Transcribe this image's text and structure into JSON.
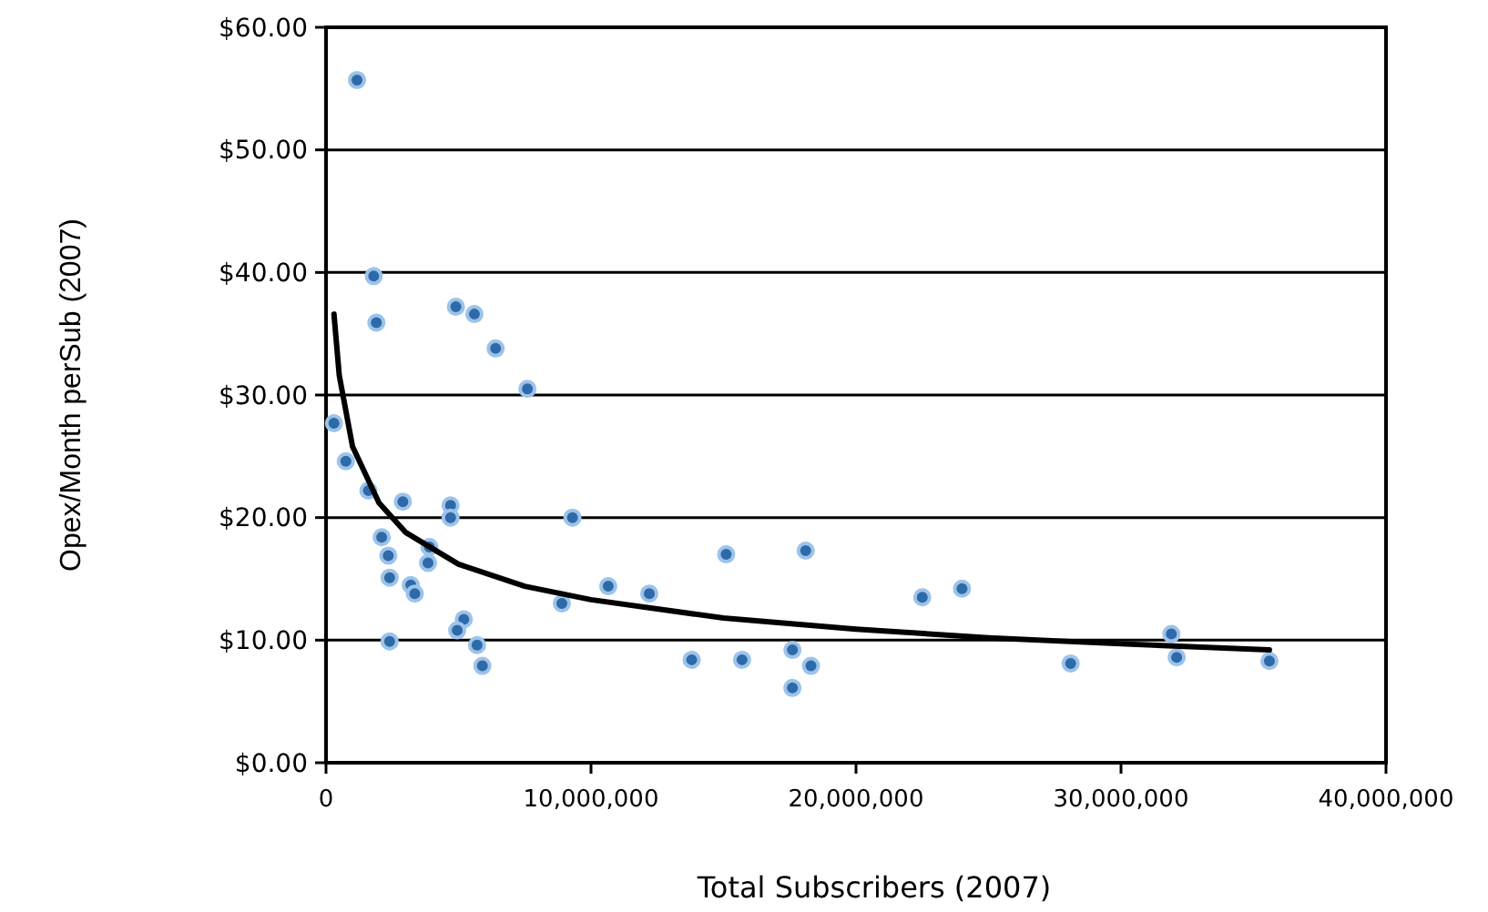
{
  "chart_data": {
    "type": "scatter",
    "xlabel": "Total Subscribers (2007)",
    "ylabel": "Opex/Month perSub (2007)",
    "xlim": [
      0,
      40000000
    ],
    "ylim": [
      0,
      60
    ],
    "xticks": [
      {
        "value": 0,
        "label": "0"
      },
      {
        "value": 10000000,
        "label": "10,000,000"
      },
      {
        "value": 20000000,
        "label": "20,000,000"
      },
      {
        "value": 30000000,
        "label": "30,000,000"
      },
      {
        "value": 40000000,
        "label": "40,000,000"
      }
    ],
    "yticks": [
      {
        "value": 0,
        "label": "$0.00"
      },
      {
        "value": 10,
        "label": "$10.00"
      },
      {
        "value": 20,
        "label": "$20.00"
      },
      {
        "value": 30,
        "label": "$30.00"
      },
      {
        "value": 40,
        "label": "$40.00"
      },
      {
        "value": 50,
        "label": "$50.00"
      },
      {
        "value": 60,
        "label": "$60.00"
      }
    ],
    "grid": "y",
    "series": [
      {
        "marker": "circle",
        "color": "#2f6aa8",
        "x": [
          1170000,
          1800000,
          1900000,
          4900000,
          5600000,
          6400000,
          7600000,
          300000,
          750000,
          1600000,
          2900000,
          4700000,
          4700000,
          9300000,
          2100000,
          2350000,
          3900000,
          3850000,
          2400000,
          3200000,
          3350000,
          5200000,
          4950000,
          5700000,
          5900000,
          2400000,
          8900000,
          10650000,
          12200000,
          13800000,
          15100000,
          18100000,
          15700000,
          17600000,
          17600000,
          18300000,
          22500000,
          24000000,
          28100000,
          31900000,
          32100000,
          35600000
        ],
        "values": [
          55.7,
          39.7,
          35.9,
          37.2,
          36.6,
          33.8,
          30.5,
          27.7,
          24.6,
          22.2,
          21.3,
          21.0,
          20.0,
          20.0,
          18.4,
          16.9,
          17.6,
          16.3,
          15.1,
          14.5,
          13.8,
          11.7,
          10.8,
          9.6,
          7.9,
          9.9,
          13.0,
          14.4,
          13.8,
          8.4,
          17.0,
          17.3,
          8.4,
          6.1,
          9.2,
          7.9,
          13.5,
          14.2,
          8.1,
          10.5,
          8.6,
          8.3
        ]
      },
      {
        "type": "line",
        "color": "#000000",
        "x": [
          300000,
          500000,
          1000000,
          2000000,
          3000000,
          5000000,
          7500000,
          10000000,
          15000000,
          20000000,
          25000000,
          30000000,
          35600000
        ],
        "values": [
          36.6,
          31.6,
          25.8,
          21.2,
          18.8,
          16.2,
          14.4,
          13.3,
          11.8,
          10.9,
          10.2,
          9.7,
          9.2
        ]
      }
    ]
  }
}
